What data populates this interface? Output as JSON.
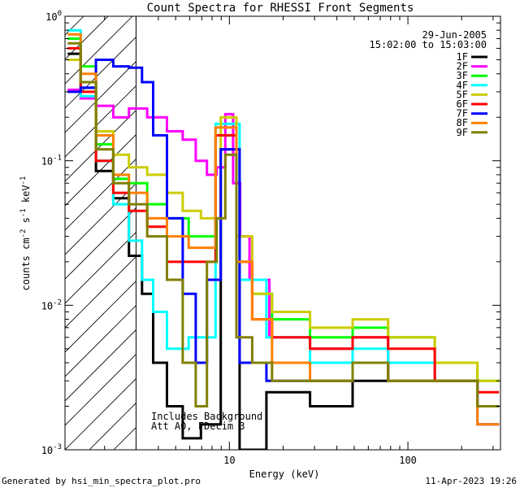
{
  "chart_data": {
    "type": "line",
    "title": "Count Spectra for RHESSI Front Segments",
    "xlabel": "Energy (keV)",
    "ylabel_parts": [
      "counts cm",
      "-2",
      " s",
      "-1",
      " keV",
      "-1"
    ],
    "x_scale": "log",
    "y_scale": "log",
    "xlim": [
      1.2,
      330
    ],
    "ylim": [
      0.001,
      1.0
    ],
    "x_ticks": [
      {
        "v": 10,
        "label": "10"
      },
      {
        "v": 100,
        "label": "100"
      }
    ],
    "y_ticks": [
      {
        "v": 1,
        "label": "10^0"
      },
      {
        "v": 0.1,
        "label": "10^-1"
      },
      {
        "v": 0.01,
        "label": "10^-2"
      },
      {
        "v": 0.001,
        "label": "10^-3"
      }
    ],
    "hatched_region_x": [
      1.2,
      3.0
    ],
    "date": "29-Jun-2005",
    "time_range": "15:02:00 to 15:03:00",
    "annotations": [
      "Includes Background",
      "Att A0, FDecim 3"
    ],
    "footer_left": "Generated by hsi_min_spectra_plot.pro",
    "footer_right": "11-Apr-2023 19:26",
    "legend_position": "top-right",
    "series": [
      {
        "name": "1F",
        "color": "#000000",
        "points": [
          [
            1.35,
            0.55
          ],
          [
            1.6,
            0.32
          ],
          [
            2.0,
            0.085
          ],
          [
            2.5,
            0.055
          ],
          [
            3.0,
            0.022
          ],
          [
            3.5,
            0.012
          ],
          [
            4.0,
            0.004
          ],
          [
            5.0,
            0.002
          ],
          [
            6.0,
            0.0012
          ],
          [
            8.0,
            0.0015
          ],
          [
            10.0,
            0.12
          ],
          [
            13.0,
            0.001
          ],
          [
            20.0,
            0.0025
          ],
          [
            40.0,
            0.002
          ],
          [
            60.0,
            0.003
          ],
          [
            100.0,
            0.004
          ],
          [
            200.0,
            0.003
          ],
          [
            300.0,
            0.002
          ]
        ]
      },
      {
        "name": "2F",
        "color": "#ff00ff",
        "points": [
          [
            1.35,
            0.31
          ],
          [
            1.6,
            0.27
          ],
          [
            2.0,
            0.24
          ],
          [
            2.5,
            0.2
          ],
          [
            3.0,
            0.23
          ],
          [
            4.0,
            0.2
          ],
          [
            5.0,
            0.16
          ],
          [
            6.0,
            0.14
          ],
          [
            7.0,
            0.1
          ],
          [
            8.0,
            0.08
          ],
          [
            9.0,
            0.09
          ],
          [
            10.0,
            0.21
          ],
          [
            11.0,
            0.07
          ],
          [
            12.0,
            0.03
          ],
          [
            14.0,
            0.015
          ],
          [
            20.0,
            0.006
          ],
          [
            40.0,
            0.005
          ],
          [
            60.0,
            0.006
          ],
          [
            100.0,
            0.004
          ],
          [
            200.0,
            0.003
          ],
          [
            300.0,
            0.002
          ]
        ]
      },
      {
        "name": "3F",
        "color": "#00ff00",
        "points": [
          [
            1.35,
            0.7
          ],
          [
            1.6,
            0.45
          ],
          [
            2.0,
            0.13
          ],
          [
            2.5,
            0.075
          ],
          [
            3.0,
            0.07
          ],
          [
            4.0,
            0.05
          ],
          [
            5.0,
            0.04
          ],
          [
            7.0,
            0.03
          ],
          [
            10.0,
            0.15
          ],
          [
            12.0,
            0.02
          ],
          [
            15.0,
            0.012
          ],
          [
            20.0,
            0.008
          ],
          [
            40.0,
            0.006
          ],
          [
            60.0,
            0.007
          ],
          [
            100.0,
            0.006
          ],
          [
            200.0,
            0.004
          ],
          [
            300.0,
            0.003
          ]
        ]
      },
      {
        "name": "4F",
        "color": "#00ffff",
        "points": [
          [
            1.35,
            0.8
          ],
          [
            1.6,
            0.28
          ],
          [
            2.0,
            0.1
          ],
          [
            2.5,
            0.05
          ],
          [
            3.0,
            0.028
          ],
          [
            3.5,
            0.015
          ],
          [
            4.0,
            0.009
          ],
          [
            5.0,
            0.005
          ],
          [
            7.0,
            0.006
          ],
          [
            10.0,
            0.18
          ],
          [
            13.0,
            0.015
          ],
          [
            20.0,
            0.006
          ],
          [
            40.0,
            0.004
          ],
          [
            60.0,
            0.005
          ],
          [
            100.0,
            0.004
          ],
          [
            200.0,
            0.003
          ],
          [
            300.0,
            0.002
          ]
        ]
      },
      {
        "name": "5F",
        "color": "#cccc00",
        "points": [
          [
            1.35,
            0.5
          ],
          [
            1.6,
            0.35
          ],
          [
            2.0,
            0.16
          ],
          [
            2.5,
            0.11
          ],
          [
            3.0,
            0.09
          ],
          [
            4.0,
            0.08
          ],
          [
            5.0,
            0.06
          ],
          [
            6.0,
            0.045
          ],
          [
            8.0,
            0.04
          ],
          [
            10.0,
            0.2
          ],
          [
            12.0,
            0.03
          ],
          [
            15.0,
            0.012
          ],
          [
            20.0,
            0.009
          ],
          [
            40.0,
            0.007
          ],
          [
            60.0,
            0.008
          ],
          [
            100.0,
            0.006
          ],
          [
            200.0,
            0.004
          ],
          [
            300.0,
            0.003
          ]
        ]
      },
      {
        "name": "6F",
        "color": "#ff0000",
        "points": [
          [
            1.35,
            0.6
          ],
          [
            1.6,
            0.3
          ],
          [
            2.0,
            0.1
          ],
          [
            2.5,
            0.06
          ],
          [
            3.0,
            0.045
          ],
          [
            4.0,
            0.035
          ],
          [
            5.0,
            0.02
          ],
          [
            7.0,
            0.02
          ],
          [
            10.0,
            0.15
          ],
          [
            12.0,
            0.02
          ],
          [
            15.0,
            0.008
          ],
          [
            20.0,
            0.006
          ],
          [
            40.0,
            0.005
          ],
          [
            60.0,
            0.006
          ],
          [
            100.0,
            0.005
          ],
          [
            200.0,
            0.003
          ],
          [
            300.0,
            0.0025
          ]
        ]
      },
      {
        "name": "7F",
        "color": "#0000ff",
        "points": [
          [
            1.35,
            0.3
          ],
          [
            1.6,
            0.32
          ],
          [
            2.0,
            0.5
          ],
          [
            2.5,
            0.45
          ],
          [
            3.0,
            0.44
          ],
          [
            3.5,
            0.35
          ],
          [
            4.0,
            0.15
          ],
          [
            5.0,
            0.04
          ],
          [
            6.0,
            0.012
          ],
          [
            7.0,
            0.004
          ],
          [
            8.0,
            0.015
          ],
          [
            10.0,
            0.12
          ],
          [
            13.0,
            0.004
          ],
          [
            20.0,
            0.003
          ],
          [
            40.0,
            0.003
          ],
          [
            60.0,
            0.004
          ],
          [
            100.0,
            0.003
          ],
          [
            200.0,
            0.003
          ],
          [
            300.0,
            0.0015
          ]
        ]
      },
      {
        "name": "8F",
        "color": "#ff8000",
        "points": [
          [
            1.35,
            0.75
          ],
          [
            1.6,
            0.4
          ],
          [
            2.0,
            0.15
          ],
          [
            2.5,
            0.08
          ],
          [
            3.0,
            0.06
          ],
          [
            4.0,
            0.04
          ],
          [
            5.0,
            0.03
          ],
          [
            7.0,
            0.025
          ],
          [
            10.0,
            0.17
          ],
          [
            12.0,
            0.02
          ],
          [
            15.0,
            0.008
          ],
          [
            20.0,
            0.004
          ],
          [
            40.0,
            0.003
          ],
          [
            60.0,
            0.004
          ],
          [
            100.0,
            0.003
          ],
          [
            200.0,
            0.003
          ],
          [
            300.0,
            0.0015
          ]
        ]
      },
      {
        "name": "9F",
        "color": "#808000",
        "points": [
          [
            1.35,
            0.65
          ],
          [
            1.6,
            0.35
          ],
          [
            2.0,
            0.12
          ],
          [
            2.5,
            0.07
          ],
          [
            3.0,
            0.05
          ],
          [
            4.0,
            0.03
          ],
          [
            5.0,
            0.015
          ],
          [
            6.0,
            0.004
          ],
          [
            7.0,
            0.002
          ],
          [
            8.0,
            0.02
          ],
          [
            9.0,
            0.04
          ],
          [
            10.0,
            0.11
          ],
          [
            12.0,
            0.006
          ],
          [
            15.0,
            0.004
          ],
          [
            20.0,
            0.003
          ],
          [
            40.0,
            0.003
          ],
          [
            60.0,
            0.004
          ],
          [
            100.0,
            0.003
          ],
          [
            200.0,
            0.003
          ],
          [
            300.0,
            0.002
          ]
        ]
      }
    ]
  }
}
